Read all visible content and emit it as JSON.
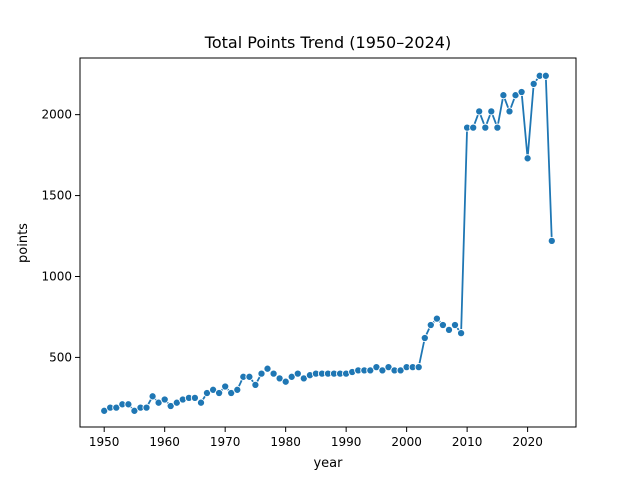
{
  "chart_data": {
    "type": "line",
    "title": "Total Points Trend (1950–2024)",
    "xlabel": "year",
    "ylabel": "points",
    "xlim": [
      1946,
      2028
    ],
    "ylim": [
      70,
      2350
    ],
    "xticks": [
      1950,
      1960,
      1970,
      1980,
      1990,
      2000,
      2010,
      2020
    ],
    "yticks": [
      500,
      1000,
      1500,
      2000
    ],
    "grid": false,
    "legend": "none",
    "color": "#1f77b4",
    "series": [
      {
        "x": [
          1950,
          1951,
          1952,
          1953,
          1954,
          1955,
          1956,
          1957,
          1958,
          1959,
          1960,
          1961,
          1962,
          1963,
          1964,
          1965,
          1966,
          1967,
          1968,
          1969,
          1970,
          1971,
          1972,
          1973,
          1974,
          1975,
          1976,
          1977,
          1978,
          1979,
          1980,
          1981,
          1982,
          1983,
          1984,
          1985,
          1986,
          1987,
          1988,
          1989,
          1990,
          1991,
          1992,
          1993,
          1994,
          1995,
          1996,
          1997,
          1998,
          1999,
          2000,
          2001,
          2002,
          2003,
          2004,
          2005,
          2006,
          2007,
          2008,
          2009,
          2010,
          2011,
          2012,
          2013,
          2014,
          2015,
          2016,
          2017,
          2018,
          2019,
          2020,
          2021,
          2022,
          2023,
          2024
        ],
        "values": [
          170,
          190,
          190,
          210,
          210,
          170,
          190,
          190,
          260,
          220,
          240,
          200,
          220,
          240,
          250,
          250,
          220,
          280,
          300,
          280,
          320,
          280,
          300,
          380,
          380,
          330,
          400,
          430,
          400,
          370,
          350,
          380,
          400,
          370,
          390,
          400,
          400,
          400,
          400,
          400,
          400,
          410,
          420,
          420,
          420,
          440,
          420,
          440,
          420,
          420,
          440,
          440,
          440,
          620,
          700,
          740,
          700,
          670,
          700,
          650,
          1920,
          1920,
          2020,
          1920,
          2020,
          1920,
          2120,
          2020,
          2120,
          2140,
          1730,
          2190,
          2240,
          2240,
          1220
        ]
      }
    ]
  }
}
